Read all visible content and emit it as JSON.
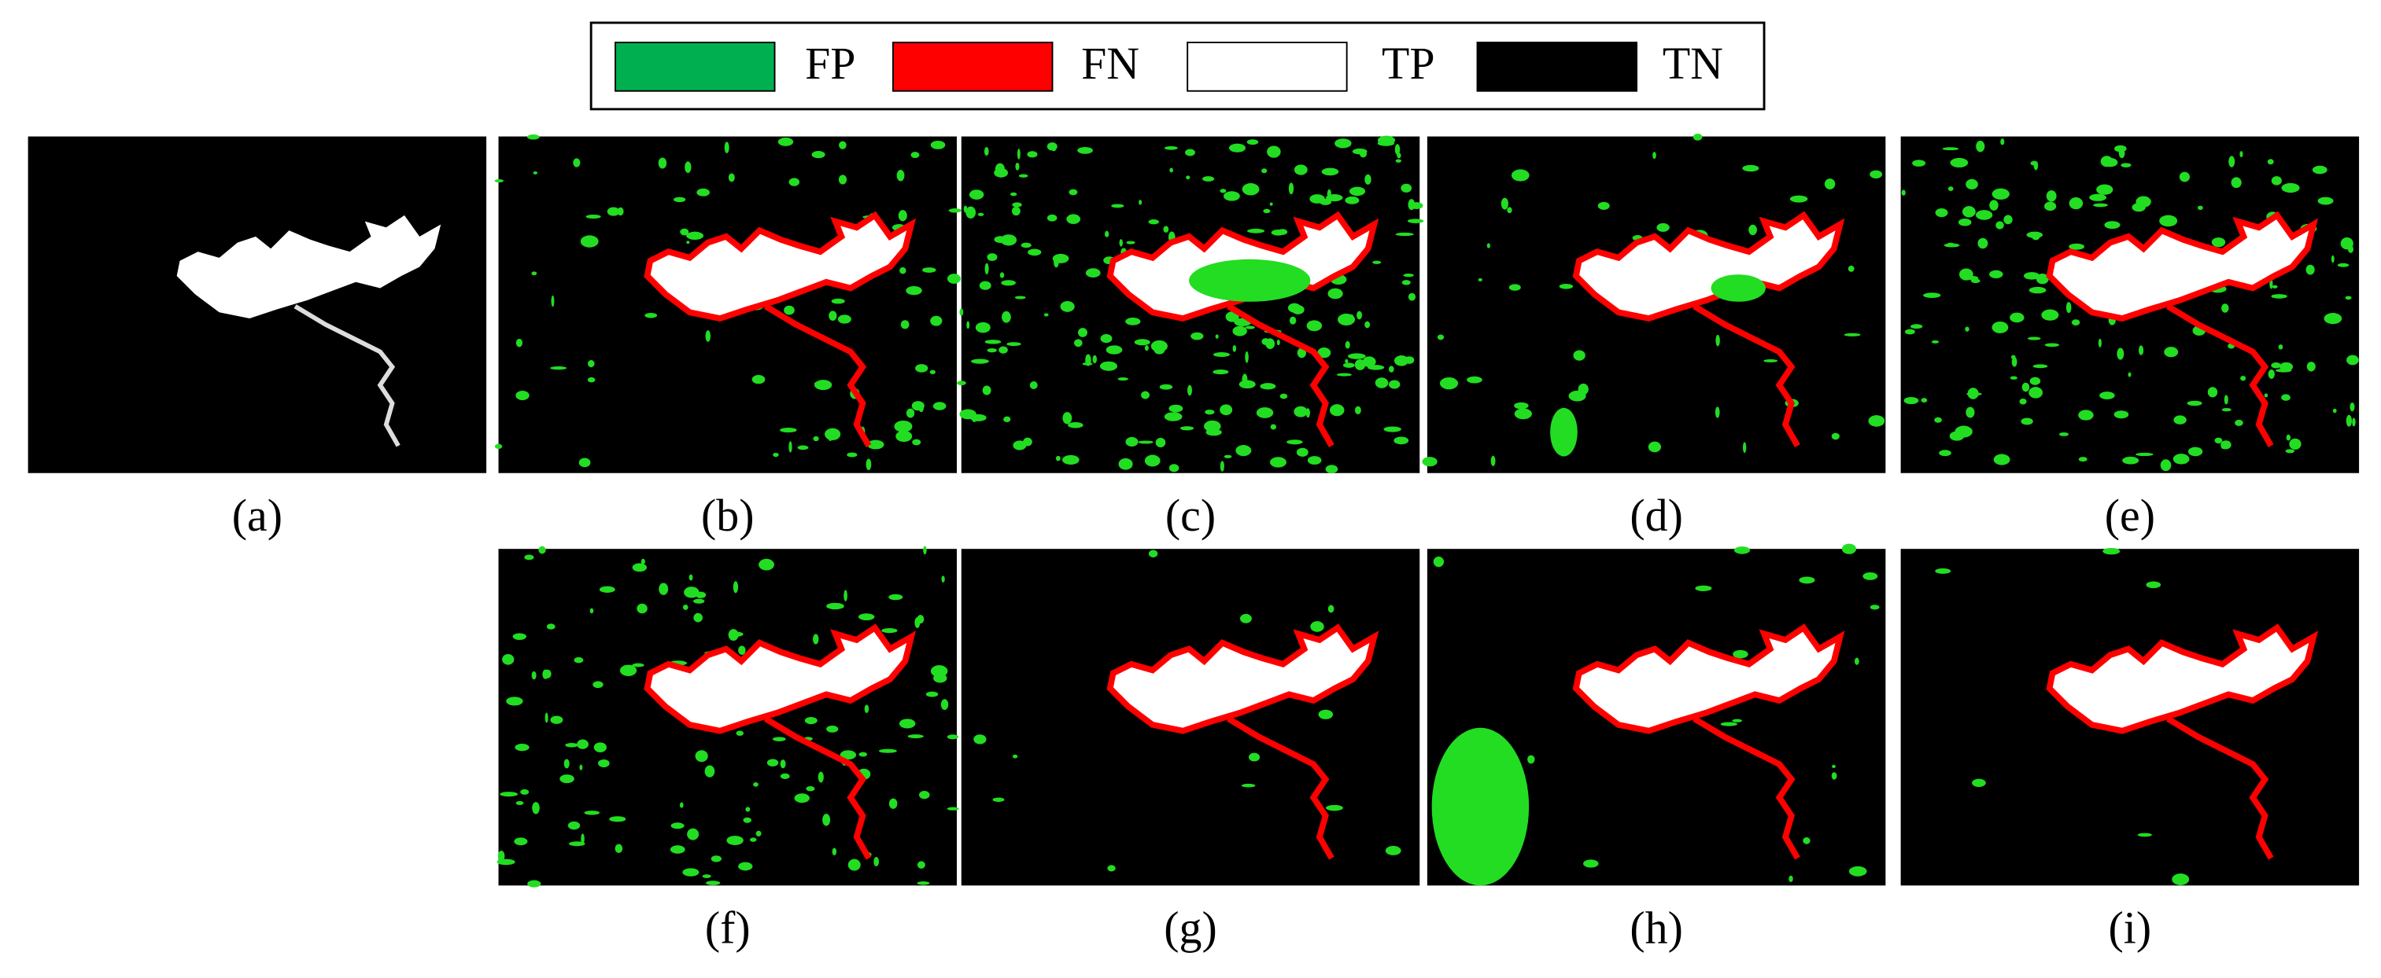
{
  "legend": [
    {
      "label": "FP",
      "color": "#00b050"
    },
    {
      "label": "FN",
      "color": "#ff0000"
    },
    {
      "label": "TP",
      "color": "#ffffff"
    },
    {
      "label": "TN",
      "color": "#000000"
    }
  ],
  "panels": [
    {
      "label": "(a)"
    },
    {
      "label": "(b)"
    },
    {
      "label": "(c)"
    },
    {
      "label": "(d)"
    },
    {
      "label": "(e)"
    },
    {
      "label": "(f)"
    },
    {
      "label": "(g)"
    },
    {
      "label": "(h)"
    },
    {
      "label": "(i)"
    }
  ]
}
